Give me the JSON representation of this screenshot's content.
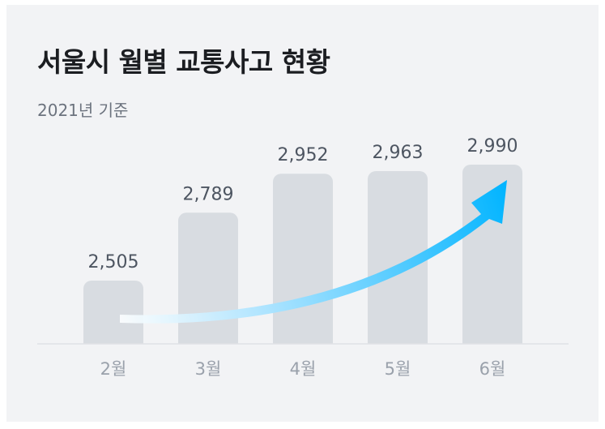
{
  "chart_data": {
    "type": "bar",
    "title": "서울시 월별 교통사고 현황",
    "subtitle": "2021년 기준",
    "categories": [
      "2월",
      "3월",
      "4월",
      "5월",
      "6월"
    ],
    "values": [
      2505,
      2789,
      2952,
      2963,
      2990
    ],
    "value_labels": [
      "2,505",
      "2,789",
      "2,952",
      "2,963",
      "2,990"
    ],
    "trend_arrow": "upward",
    "colors": {
      "background": "#f2f3f5",
      "bar": "#d8dce1",
      "arrow_start": "#e6f6ff",
      "arrow_end": "#00b4ff"
    }
  }
}
